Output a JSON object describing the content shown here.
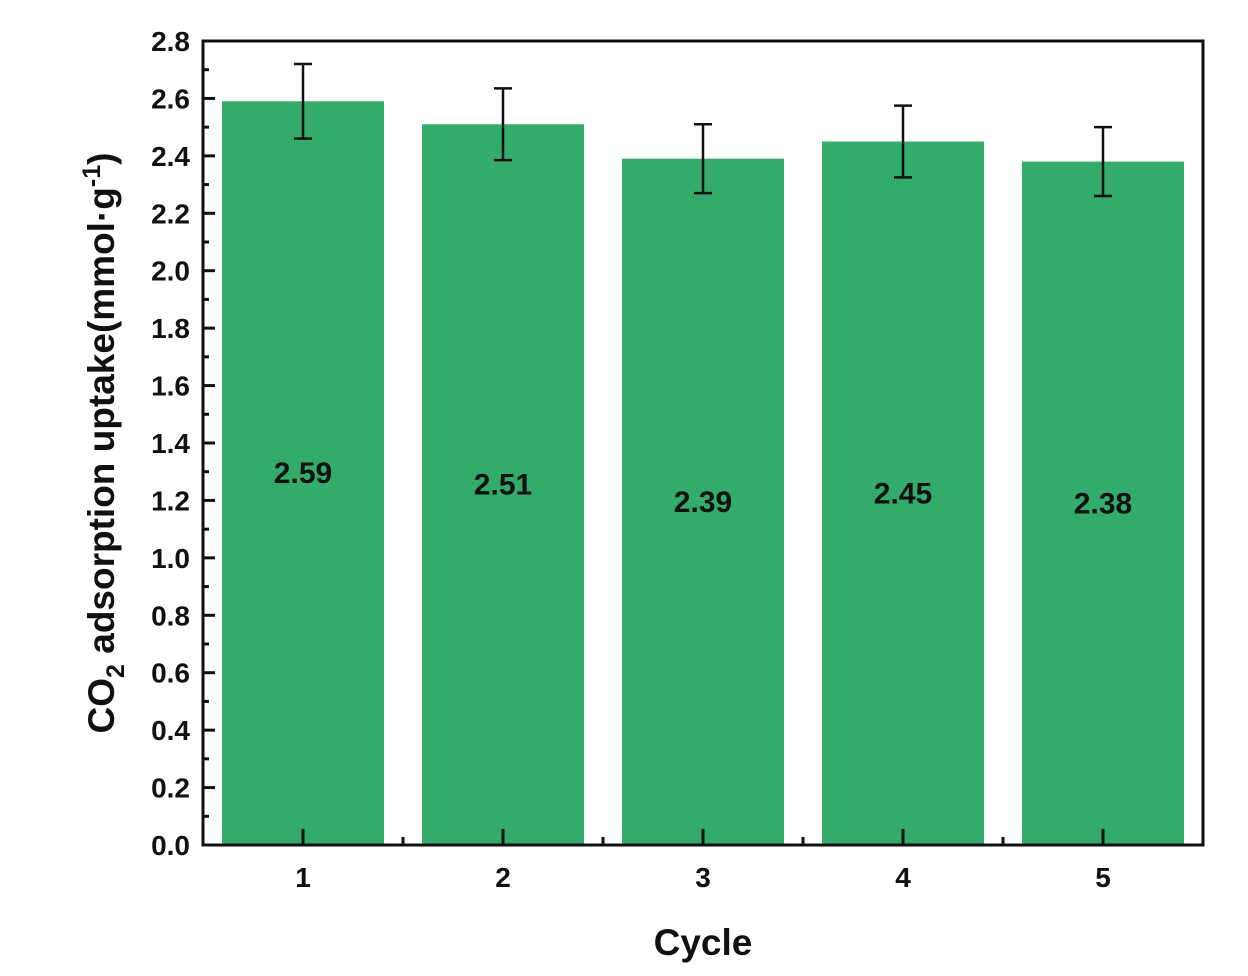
{
  "chart_data": {
    "type": "bar",
    "categories": [
      "1",
      "2",
      "3",
      "4",
      "5"
    ],
    "values": [
      2.59,
      2.51,
      2.39,
      2.45,
      2.38
    ],
    "error_bars": [
      0.13,
      0.125,
      0.12,
      0.125,
      0.12
    ],
    "data_labels": [
      "2.59",
      "2.51",
      "2.39",
      "2.45",
      "2.38"
    ],
    "xlabel": "Cycle",
    "ylabel": {
      "prefix": "CO",
      "subscript": "2",
      "main": " adsorption uptake(mmol·g",
      "superscript": "-1",
      "suffix": ")"
    },
    "ylim": [
      0,
      2.8
    ],
    "yticks": [
      "0.0",
      "0.2",
      "0.4",
      "0.6",
      "0.8",
      "1.0",
      "1.2",
      "1.4",
      "1.6",
      "1.8",
      "2.0",
      "2.2",
      "2.4",
      "2.6",
      "2.8"
    ],
    "bar_color": "#33ab6b",
    "grid": false,
    "legend": "none"
  }
}
